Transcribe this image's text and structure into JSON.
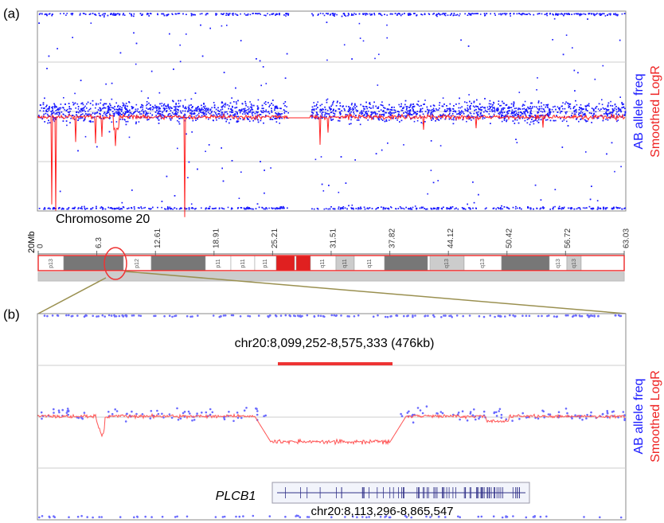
{
  "panel_a": {
    "label": "(a)",
    "y_label_1": "AB allele freq",
    "y_label_2": "Smoothed LogR"
  },
  "ideogram": {
    "title": "Chromosome 20",
    "unit_label": "20Mb",
    "ticks": [
      0,
      6.3,
      12.61,
      18.91,
      25.21,
      31.51,
      37.82,
      44.12,
      50.42,
      56.72,
      63.03
    ],
    "bands": [
      "p13",
      "p12",
      "p11",
      "p11",
      "p11",
      "q11",
      "q11",
      "q11",
      "q13",
      "q13",
      "q13",
      "q13"
    ]
  },
  "panel_b": {
    "label": "(b)",
    "region_label": "chr20:8,099,252-8,575,333 (476kb)",
    "gene_name": "PLCB1",
    "gene_label": "chr20:8,113,296-8,865,547",
    "y_label_1": "AB allele freq",
    "y_label_2": "Smoothed LogR"
  }
}
